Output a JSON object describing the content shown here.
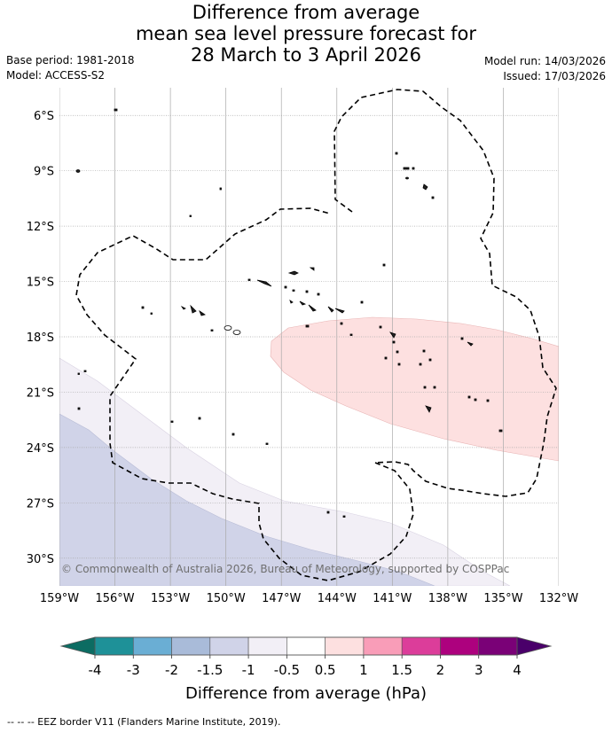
{
  "title": {
    "line1": "Difference from average",
    "line2": "mean sea level pressure forecast for",
    "line3": "28 March to 3 April 2026"
  },
  "meta": {
    "base_period": "Base period: 1981-2018",
    "model": "Model: ACCESS-S2",
    "model_run": "Model run: 14/03/2026",
    "issued": "Issued: 17/03/2026"
  },
  "map": {
    "lat_labels": [
      "6°S",
      "9°S",
      "12°S",
      "15°S",
      "18°S",
      "21°S",
      "24°S",
      "27°S",
      "30°S"
    ],
    "lat_values": [
      -6,
      -9,
      -12,
      -15,
      -18,
      -21,
      -24,
      -27,
      -30
    ],
    "lon_labels": [
      "159°W",
      "156°W",
      "153°W",
      "150°W",
      "147°W",
      "144°W",
      "141°W",
      "138°W",
      "135°W",
      "132°W"
    ],
    "lon_values": [
      -159,
      -156,
      -153,
      -150,
      -147,
      -144,
      -141,
      -138,
      -135,
      -132
    ],
    "extent": {
      "lon_min": -159,
      "lon_max": -132,
      "lat_min": -31.5,
      "lat_max": -4.5
    },
    "copyright": "© Commonwealth of Australia 2026, Bureau of Meteorology, supported by COSPPac",
    "anomaly_regions": [
      {
        "name": "positive-anomaly-region",
        "category": "0.5 to 1",
        "color": "#fde0e0"
      },
      {
        "name": "negative-anomaly-region-weak",
        "category": "-1 to -0.5",
        "color": "#f2eff6"
      },
      {
        "name": "negative-anomaly-region-moderate",
        "category": "-1.5 to -1",
        "color": "#d0d3e8"
      }
    ]
  },
  "colorbar": {
    "label": "Difference from average (hPa)",
    "ticks": [
      "-4",
      "-3",
      "-2",
      "-1.5",
      "-1",
      "-0.5",
      "0.5",
      "1",
      "1.5",
      "2",
      "3",
      "4"
    ],
    "colors": [
      "#1e9198",
      "#6aaed4",
      "#a9bbd9",
      "#d0d3e8",
      "#f2eff6",
      "#ffffff",
      "#fde0e0",
      "#f99db8",
      "#dc3d9a",
      "#ad017e",
      "#7a0177"
    ],
    "under_color": "#0c6c62",
    "over_color": "#4a006a"
  },
  "footer": "--  --  -- EEZ border V11 (Flanders Marine Institute, 2019)."
}
